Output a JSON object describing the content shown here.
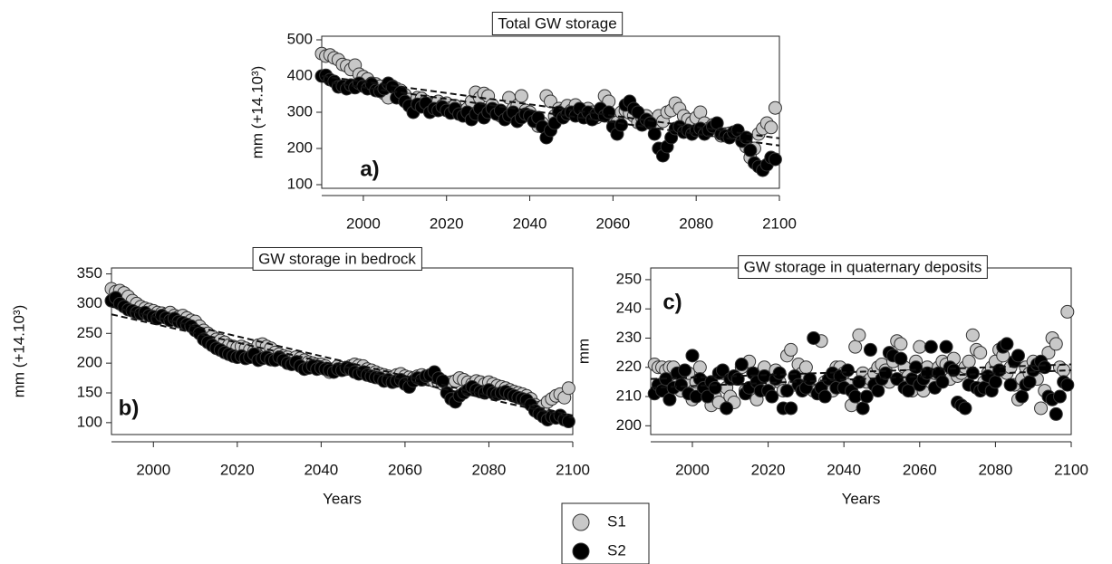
{
  "chart_data": [
    {
      "type": "scatter",
      "title": "Total GW storage",
      "panel_label": "a)",
      "ylabel": "mm (+14.10³)",
      "x": [
        1990,
        1991,
        1992,
        1993,
        1994,
        1995,
        1996,
        1997,
        1998,
        1999,
        2000,
        2001,
        2002,
        2003,
        2004,
        2005,
        2006,
        2007,
        2008,
        2009,
        2010,
        2011,
        2012,
        2013,
        2014,
        2015,
        2016,
        2017,
        2018,
        2019,
        2020,
        2021,
        2022,
        2023,
        2024,
        2025,
        2026,
        2027,
        2028,
        2029,
        2030,
        2031,
        2032,
        2033,
        2034,
        2035,
        2036,
        2037,
        2038,
        2039,
        2040,
        2041,
        2042,
        2043,
        2044,
        2045,
        2046,
        2047,
        2048,
        2049,
        2050,
        2051,
        2052,
        2053,
        2054,
        2055,
        2056,
        2057,
        2058,
        2059,
        2060,
        2061,
        2062,
        2063,
        2064,
        2065,
        2066,
        2067,
        2068,
        2069,
        2070,
        2071,
        2072,
        2073,
        2074,
        2075,
        2076,
        2077,
        2078,
        2079,
        2080,
        2081,
        2082,
        2083,
        2084,
        2085,
        2086,
        2087,
        2088,
        2089,
        2090,
        2091,
        2092,
        2093,
        2094,
        2095,
        2096,
        2097,
        2098,
        2099
      ],
      "series": [
        {
          "name": "S1",
          "color": "#c8c8c8",
          "trend": [
            400,
            228
          ],
          "values": [
            462,
            455,
            458,
            450,
            445,
            432,
            428,
            418,
            430,
            405,
            398,
            392,
            380,
            378,
            372,
            352,
            340,
            372,
            365,
            360,
            348,
            335,
            320,
            340,
            338,
            330,
            315,
            322,
            330,
            318,
            325,
            312,
            318,
            305,
            302,
            310,
            330,
            355,
            340,
            352,
            345,
            320,
            300,
            290,
            288,
            340,
            310,
            318,
            345,
            305,
            300,
            280,
            262,
            270,
            345,
            330,
            290,
            310,
            305,
            318,
            305,
            320,
            302,
            295,
            310,
            300,
            285,
            295,
            345,
            330,
            280,
            272,
            300,
            305,
            298,
            290,
            272,
            285,
            290,
            270,
            262,
            290,
            275,
            300,
            305,
            325,
            310,
            290,
            280,
            272,
            285,
            300,
            270,
            255,
            265,
            248,
            235,
            240,
            242,
            238,
            245,
            228,
            205,
            175,
            200,
            240,
            255,
            270,
            258,
            312
          ]
        },
        {
          "name": "S2",
          "color": "#000000",
          "trend": [
            385,
            208
          ],
          "values": [
            400,
            402,
            390,
            385,
            370,
            372,
            365,
            375,
            368,
            380,
            372,
            365,
            378,
            360,
            358,
            365,
            380,
            370,
            340,
            355,
            330,
            318,
            300,
            322,
            315,
            325,
            300,
            310,
            305,
            315,
            305,
            298,
            310,
            295,
            290,
            300,
            280,
            295,
            310,
            285,
            300,
            310,
            295,
            305,
            280,
            290,
            300,
            275,
            285,
            295,
            290,
            275,
            285,
            260,
            230,
            250,
            270,
            300,
            285,
            295,
            300,
            290,
            310,
            285,
            300,
            280,
            295,
            310,
            290,
            300,
            260,
            240,
            265,
            320,
            330,
            310,
            300,
            265,
            280,
            270,
            240,
            200,
            180,
            205,
            230,
            255,
            260,
            245,
            250,
            240,
            250,
            255,
            240,
            250,
            260,
            270,
            240,
            235,
            230,
            245,
            250,
            220,
            230,
            195,
            160,
            150,
            140,
            155,
            175,
            170
          ]
        }
      ],
      "xlim": [
        1990,
        2100
      ],
      "xticks": [
        2000,
        2020,
        2040,
        2060,
        2080,
        2100
      ],
      "ylim": [
        90,
        510
      ],
      "yticks": [
        100,
        200,
        300,
        400,
        500
      ]
    },
    {
      "type": "scatter",
      "title": "GW storage in bedrock",
      "panel_label": "b)",
      "ylabel": "mm (+14.10³)",
      "xlabel": "Years",
      "x": [
        1990,
        1991,
        1992,
        1993,
        1994,
        1995,
        1996,
        1997,
        1998,
        1999,
        2000,
        2001,
        2002,
        2003,
        2004,
        2005,
        2006,
        2007,
        2008,
        2009,
        2010,
        2011,
        2012,
        2013,
        2014,
        2015,
        2016,
        2017,
        2018,
        2019,
        2020,
        2021,
        2022,
        2023,
        2024,
        2025,
        2026,
        2027,
        2028,
        2029,
        2030,
        2031,
        2032,
        2033,
        2034,
        2035,
        2036,
        2037,
        2038,
        2039,
        2040,
        2041,
        2042,
        2043,
        2044,
        2045,
        2046,
        2047,
        2048,
        2049,
        2050,
        2051,
        2052,
        2053,
        2054,
        2055,
        2056,
        2057,
        2058,
        2059,
        2060,
        2061,
        2062,
        2063,
        2064,
        2065,
        2066,
        2067,
        2068,
        2069,
        2070,
        2071,
        2072,
        2073,
        2074,
        2075,
        2076,
        2077,
        2078,
        2079,
        2080,
        2081,
        2082,
        2083,
        2084,
        2085,
        2086,
        2087,
        2088,
        2089,
        2090,
        2091,
        2092,
        2093,
        2094,
        2095,
        2096,
        2097,
        2098,
        2099
      ],
      "series": [
        {
          "name": "S1",
          "color": "#c8c8c8",
          "trend": [
            295,
            112
          ],
          "values": [
            325,
            320,
            322,
            318,
            312,
            305,
            300,
            295,
            292,
            290,
            288,
            285,
            284,
            282,
            285,
            280,
            278,
            280,
            276,
            272,
            270,
            262,
            255,
            250,
            245,
            240,
            238,
            235,
            230,
            228,
            226,
            228,
            225,
            222,
            220,
            230,
            232,
            228,
            225,
            218,
            215,
            212,
            210,
            205,
            210,
            208,
            205,
            202,
            200,
            198,
            198,
            195,
            185,
            190,
            195,
            192,
            190,
            195,
            198,
            196,
            195,
            190,
            188,
            185,
            182,
            180,
            178,
            176,
            180,
            182,
            178,
            176,
            175,
            178,
            180,
            176,
            172,
            170,
            168,
            165,
            165,
            168,
            170,
            175,
            172,
            168,
            165,
            170,
            168,
            165,
            168,
            165,
            162,
            160,
            158,
            155,
            152,
            150,
            148,
            145,
            140,
            130,
            125,
            128,
            135,
            140,
            145,
            148,
            142,
            158
          ]
        },
        {
          "name": "S2",
          "color": "#000000",
          "trend": [
            282,
            108
          ],
          "values": [
            305,
            310,
            300,
            295,
            290,
            288,
            285,
            283,
            285,
            280,
            278,
            275,
            280,
            276,
            272,
            275,
            270,
            268,
            265,
            262,
            255,
            250,
            240,
            235,
            230,
            225,
            222,
            218,
            215,
            212,
            210,
            212,
            208,
            210,
            215,
            205,
            208,
            210,
            206,
            205,
            210,
            205,
            200,
            198,
            202,
            195,
            190,
            192,
            195,
            190,
            192,
            190,
            188,
            185,
            190,
            188,
            192,
            190,
            185,
            182,
            185,
            180,
            178,
            176,
            175,
            170,
            172,
            168,
            170,
            172,
            165,
            160,
            170,
            175,
            172,
            178,
            180,
            185,
            175,
            170,
            150,
            140,
            135,
            145,
            150,
            155,
            160,
            155,
            152,
            150,
            155,
            150,
            148,
            150,
            152,
            148,
            145,
            142,
            140,
            138,
            130,
            120,
            115,
            110,
            105,
            110,
            108,
            112,
            105,
            102
          ]
        }
      ],
      "xlim": [
        1990,
        2100
      ],
      "xticks": [
        2000,
        2020,
        2040,
        2060,
        2080,
        2100
      ],
      "ylim": [
        80,
        360
      ],
      "yticks": [
        100,
        150,
        200,
        250,
        300,
        350
      ]
    },
    {
      "type": "scatter",
      "title": "GW storage in quaternary deposits",
      "panel_label": "c)",
      "ylabel": "mm",
      "xlabel": "Years",
      "x": [
        1990,
        1991,
        1992,
        1993,
        1994,
        1995,
        1996,
        1997,
        1998,
        1999,
        2000,
        2001,
        2002,
        2003,
        2004,
        2005,
        2006,
        2007,
        2008,
        2009,
        2010,
        2011,
        2012,
        2013,
        2014,
        2015,
        2016,
        2017,
        2018,
        2019,
        2020,
        2021,
        2022,
        2023,
        2024,
        2025,
        2026,
        2027,
        2028,
        2029,
        2030,
        2031,
        2032,
        2033,
        2034,
        2035,
        2036,
        2037,
        2038,
        2039,
        2040,
        2041,
        2042,
        2043,
        2044,
        2045,
        2046,
        2047,
        2048,
        2049,
        2050,
        2051,
        2052,
        2053,
        2054,
        2055,
        2056,
        2057,
        2058,
        2059,
        2060,
        2061,
        2062,
        2063,
        2064,
        2065,
        2066,
        2067,
        2068,
        2069,
        2070,
        2071,
        2072,
        2073,
        2074,
        2075,
        2076,
        2077,
        2078,
        2079,
        2080,
        2081,
        2082,
        2083,
        2084,
        2085,
        2086,
        2087,
        2088,
        2089,
        2090,
        2091,
        2092,
        2093,
        2094,
        2095,
        2096,
        2097,
        2098,
        2099
      ],
      "series": [
        {
          "name": "S1",
          "color": "#c8c8c8",
          "trend": [
            216,
            221
          ],
          "values": [
            221,
            220,
            220,
            219,
            220,
            220,
            214,
            212,
            215,
            218,
            209,
            215,
            220,
            213,
            212,
            207,
            210,
            208,
            218,
            213,
            210,
            208,
            216,
            220,
            212,
            222,
            211,
            209,
            218,
            220,
            213,
            215,
            219,
            215,
            212,
            224,
            226,
            214,
            221,
            218,
            220,
            213,
            212,
            212,
            229,
            215,
            216,
            212,
            220,
            220,
            218,
            214,
            207,
            227,
            231,
            218,
            215,
            216,
            218,
            220,
            221,
            219,
            215,
            222,
            229,
            228,
            220,
            217,
            212,
            222,
            227,
            212,
            220,
            215,
            218,
            220,
            222,
            221,
            216,
            223,
            217,
            218,
            220,
            222,
            231,
            226,
            225,
            215,
            218,
            220,
            222,
            226,
            224,
            218,
            220,
            214,
            209,
            216,
            220,
            218,
            222,
            216,
            206,
            212,
            225,
            230,
            228,
            220,
            219,
            239
          ]
        },
        {
          "name": "S2",
          "color": "#000000",
          "trend": [
            213,
            219
          ],
          "values": [
            211,
            214,
            212,
            216,
            209,
            213,
            218,
            214,
            219,
            211,
            224,
            210,
            216,
            213,
            210,
            215,
            213,
            218,
            219,
            206,
            216,
            217,
            216,
            221,
            211,
            213,
            218,
            215,
            212,
            217,
            212,
            210,
            216,
            218,
            206,
            212,
            206,
            217,
            214,
            212,
            213,
            216,
            230,
            211,
            213,
            210,
            216,
            218,
            213,
            217,
            213,
            219,
            212,
            210,
            215,
            206,
            210,
            226,
            214,
            212,
            216,
            218,
            225,
            224,
            216,
            223,
            213,
            212,
            216,
            220,
            214,
            216,
            218,
            227,
            213,
            218,
            215,
            227,
            220,
            219,
            208,
            207,
            206,
            214,
            218,
            213,
            212,
            213,
            217,
            212,
            215,
            219,
            227,
            228,
            214,
            222,
            224,
            210,
            214,
            215,
            219,
            221,
            222,
            220,
            210,
            209,
            204,
            210,
            215,
            214
          ]
        }
      ],
      "xlim": [
        1989,
        2100
      ],
      "xticks": [
        2000,
        2020,
        2040,
        2060,
        2080,
        2100
      ],
      "ylim": [
        197,
        254
      ],
      "yticks": [
        200,
        210,
        220,
        230,
        240,
        250
      ]
    }
  ]
}
